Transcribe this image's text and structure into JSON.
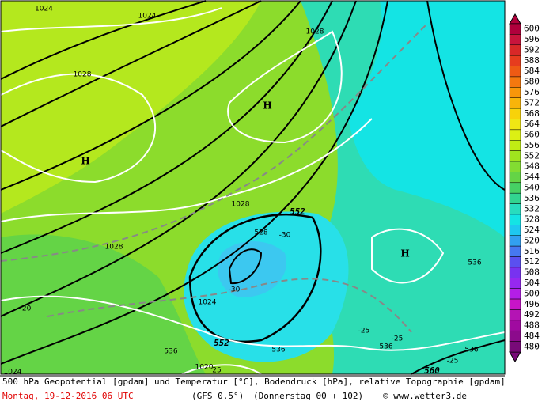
{
  "map": {
    "contour_labels": [
      "1024",
      "1024",
      "1028",
      "1028",
      "1028",
      "1028",
      "1024",
      "1020",
      "1024",
      "552",
      "552",
      "528",
      "-30",
      "-30",
      "-20",
      "-25",
      "-25",
      "-25",
      "536",
      "536",
      "536",
      "536",
      "536",
      "560",
      "25"
    ],
    "highs": [
      "H",
      "H",
      "H"
    ],
    "colorbar": {
      "labels": [
        600,
        596,
        592,
        588,
        584,
        580,
        576,
        572,
        568,
        564,
        560,
        556,
        552,
        548,
        544,
        540,
        536,
        532,
        528,
        524,
        520,
        516,
        512,
        508,
        504,
        500,
        496,
        492,
        488,
        484,
        480
      ],
      "colors": [
        "#b0003c",
        "#c8143c",
        "#d82828",
        "#e63c1e",
        "#ee5a14",
        "#f4780f",
        "#f8960a",
        "#f8b40a",
        "#f8d20a",
        "#f0e614",
        "#dcf014",
        "#c0ec14",
        "#a0e41e",
        "#82dc32",
        "#64d446",
        "#46d064",
        "#32d490",
        "#28dcbe",
        "#14e4e4",
        "#1ec8f0",
        "#32a0f0",
        "#4678f0",
        "#5a50f0",
        "#7832f0",
        "#9628f0",
        "#b41ee6",
        "#c814c8",
        "#b414b4",
        "#a00aa0",
        "#8c0a8c",
        "#780a78"
      ]
    },
    "footer": {
      "line1": "500 hPa Geopotential [gpdam] und Temperatur [°C], Bodendruck [hPa], relative Topographie [gpdam]",
      "date": "Montag, 19-12-2016  06 UTC",
      "model": "(GFS 0.5°)",
      "run": "(Donnerstag 00 + 102)",
      "credit": "© www.wetter3.de"
    }
  }
}
